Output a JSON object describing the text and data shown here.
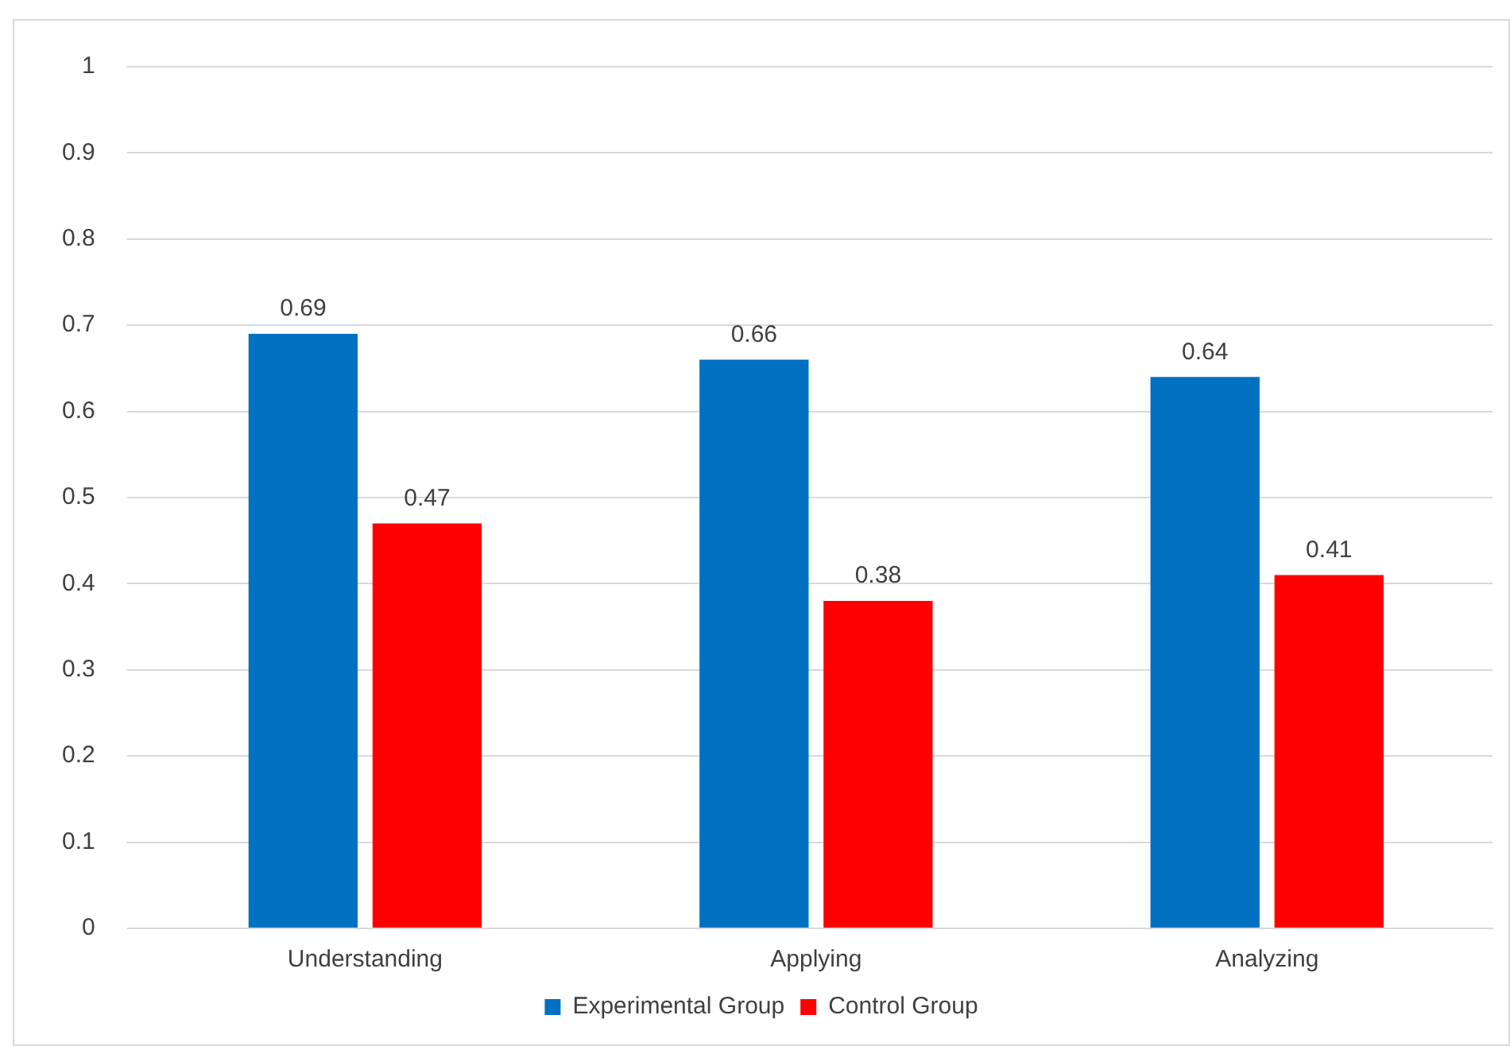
{
  "chart_data": {
    "type": "bar",
    "categories": [
      "Understanding",
      "Applying",
      "Analyzing"
    ],
    "series": [
      {
        "name": "Experimental Group",
        "color": "#0070c0",
        "values": [
          0.69,
          0.66,
          0.64
        ]
      },
      {
        "name": "Control Group",
        "color": "#ff0000",
        "values": [
          0.47,
          0.38,
          0.41
        ]
      }
    ],
    "ylim": [
      0,
      1
    ],
    "yticks": [
      0,
      0.1,
      0.2,
      0.3,
      0.4,
      0.5,
      0.6,
      0.7,
      0.8,
      0.9,
      1
    ],
    "grid": "y",
    "legend": "bottom",
    "data_labels": true
  }
}
